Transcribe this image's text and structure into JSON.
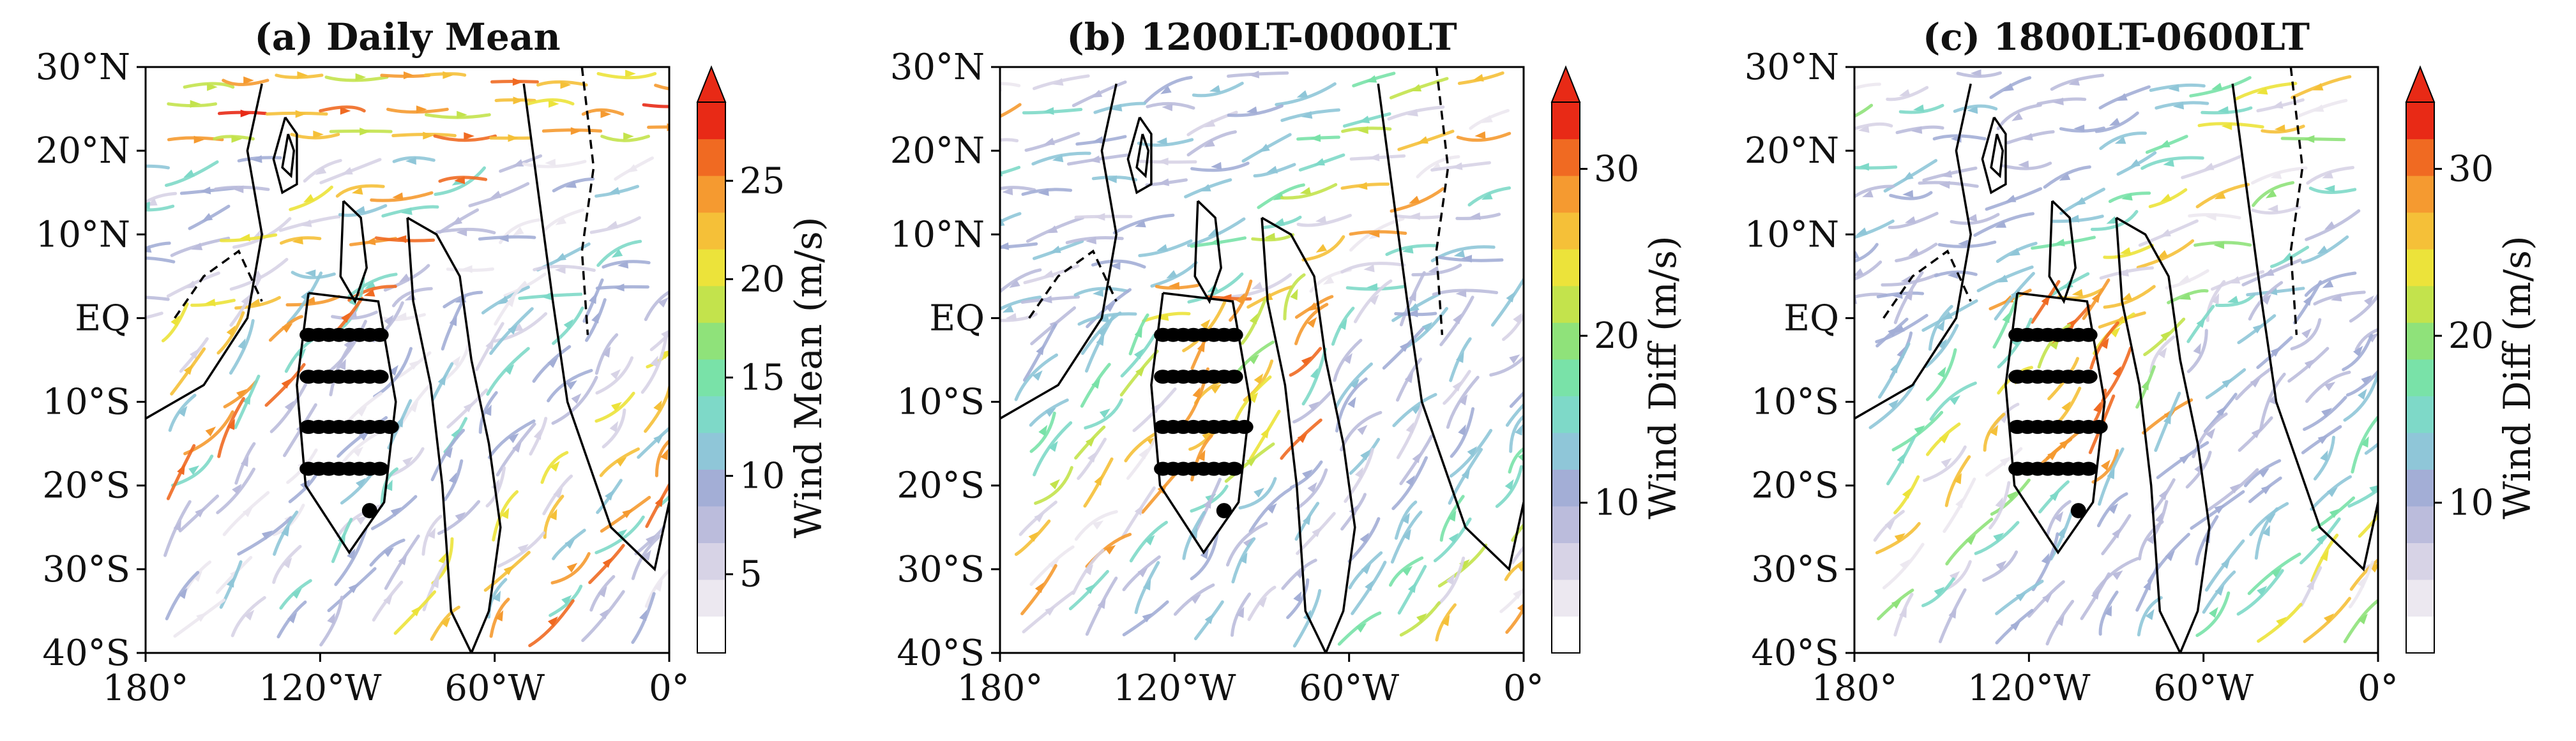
{
  "chart_data": [
    {
      "type": "streamplot",
      "title": "(a) Daily Mean",
      "colorbar_label": "Wind Mean (m/s)",
      "colorbar_ticks": [
        "5",
        "10",
        "15",
        "20",
        "25"
      ],
      "colorbar_tick_values": [
        5,
        10,
        15,
        20,
        25
      ],
      "colorbar_range": [
        1,
        29
      ],
      "stream_speeds": [
        3,
        4,
        6,
        9,
        7,
        20,
        22,
        24,
        26,
        8,
        10,
        12,
        14,
        9,
        6,
        5,
        11,
        13,
        7
      ],
      "xlim": [
        -180,
        0
      ],
      "ylim": [
        -40,
        30
      ]
    },
    {
      "type": "streamplot",
      "title": "(b) 1200LT-0000LT",
      "colorbar_label": "Wind Diff (m/s)",
      "colorbar_ticks": [
        "10",
        "20",
        "30"
      ],
      "colorbar_tick_values": [
        10,
        20,
        30
      ],
      "colorbar_range": [
        1,
        34
      ],
      "stream_speeds": [
        4,
        6,
        8,
        10,
        12,
        9,
        14,
        18,
        22,
        26,
        28,
        16,
        12,
        9,
        7,
        10,
        13,
        15,
        6
      ],
      "xlim": [
        -180,
        0
      ],
      "ylim": [
        -40,
        30
      ]
    },
    {
      "type": "streamplot",
      "title": "(c) 1800LT-0600LT",
      "colorbar_label": "Wind Diff (m/s)",
      "colorbar_ticks": [
        "10",
        "20",
        "30"
      ],
      "colorbar_tick_values": [
        10,
        20,
        30
      ],
      "colorbar_range": [
        1,
        34
      ],
      "stream_speeds": [
        5,
        7,
        8,
        10,
        9,
        11,
        14,
        18,
        24,
        27,
        20,
        16,
        12,
        9,
        8,
        10,
        13,
        15,
        7
      ],
      "xlim": [
        -180,
        0
      ],
      "ylim": [
        -40,
        30
      ]
    }
  ],
  "axes": {
    "x_ticks": [
      "180°",
      "120°W",
      "60°W",
      "0°"
    ],
    "x_tick_values": [
      -180,
      -120,
      -60,
      0
    ],
    "y_ticks": [
      "30°N",
      "20°N",
      "10°N",
      "EQ",
      "10°S",
      "20°S",
      "30°S",
      "40°S"
    ],
    "y_tick_values": [
      30,
      20,
      10,
      0,
      -10,
      -20,
      -30,
      -40
    ]
  },
  "colormap": [
    "#ffffff",
    "#ece8f0",
    "#d7d3e6",
    "#bbbcdc",
    "#a3aed6",
    "#8fc6d8",
    "#7ed9c8",
    "#79e2a8",
    "#8fe27a",
    "#c3e34c",
    "#ece33a",
    "#f5c038",
    "#f59a30",
    "#f06a22",
    "#e82a16"
  ],
  "markers": {
    "dot_rows_lat": [
      -2,
      -7,
      -13,
      -18
    ],
    "dot_row_lon_ranges": [
      [
        -124,
        -98
      ],
      [
        -124,
        -97
      ],
      [
        -124,
        -95
      ],
      [
        -124,
        -98
      ]
    ],
    "extra_dot": [
      -103,
      -23
    ]
  }
}
